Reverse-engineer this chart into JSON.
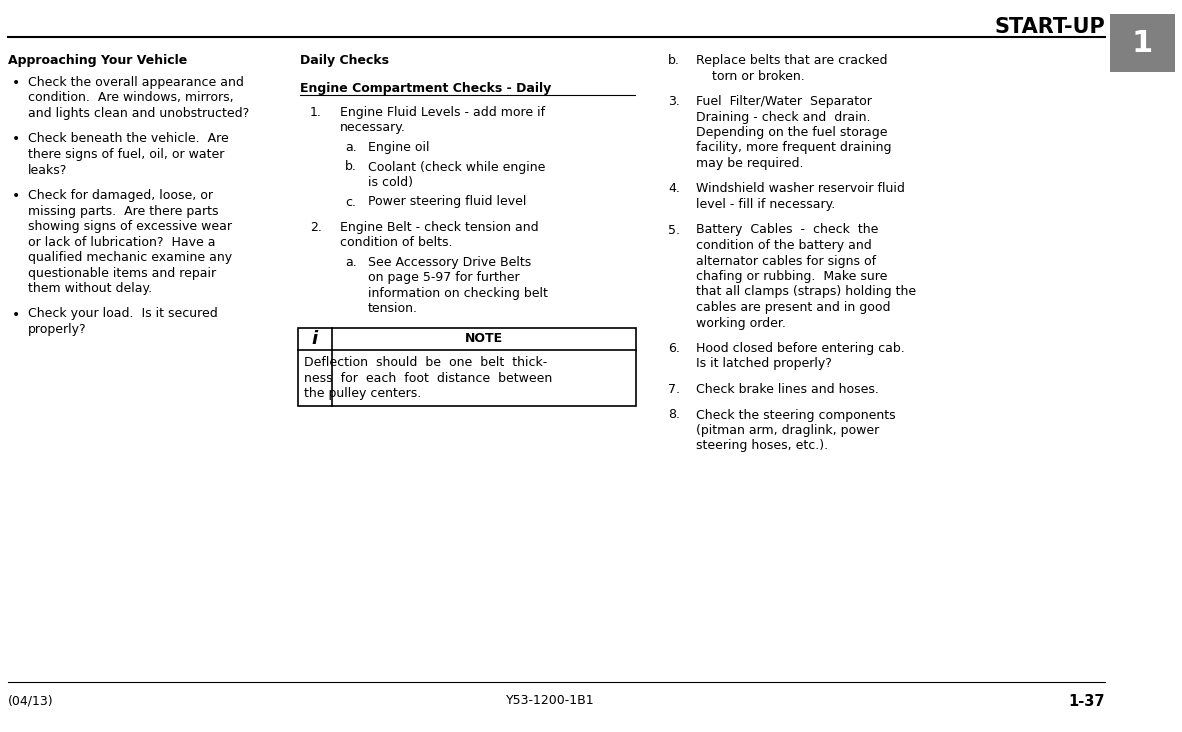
{
  "title": "START-UP",
  "chapter_num": "1",
  "footer_left": "(04/13)",
  "footer_center": "Y53-1200-1B1",
  "footer_right": "1-37",
  "bg_color": "#ffffff",
  "sidebar_color": "#808080",
  "col1_heading": "Approaching Your Vehicle",
  "col1_bullets": [
    "Check the overall appearance and\ncondition.  Are windows, mirrors,\nand lights clean and unobstructed?",
    "Check beneath the vehicle.  Are\nthere signs of fuel, oil, or water\nleaks?",
    "Check for damaged, loose, or\nmissing parts.  Are there parts\nshowing signs of excessive wear\nor lack of lubrication?  Have a\nqualified mechanic examine any\nquestionable items and repair\nthem without delay.",
    "Check your load.  Is it secured\nproperly?"
  ],
  "col2_heading": "Daily Checks",
  "col2_subheading": "Engine Compartment Checks - Daily",
  "item1_num": "1.",
  "item1_text": "Engine Fluid Levels - add more if\nnecessary.",
  "item1a_letter": "a.",
  "item1a_text": "Engine oil",
  "item1b_letter": "b.",
  "item1b_text": "Coolant (check while engine\nis cold)",
  "item1c_letter": "c.",
  "item1c_text": "Power steering fluid level",
  "item2_num": "2.",
  "item2_text": "Engine Belt - check tension and\ncondition of belts.",
  "item2a_letter": "a.",
  "item2a_text": "See Accessory Drive Belts\non page 5-97 for further\ninformation on checking belt\ntension.",
  "note_label": "NOTE",
  "note_i": "i",
  "note_line1": "Deflection  should  be  one  belt  thick-",
  "note_line2": "ness  for  each  foot  distance  between",
  "note_line3": "the pulley centers.",
  "col3_b_num": "b.",
  "col3_b_line1": "Replace belts that are cracked",
  "col3_b_line2": "    torn or broken.",
  "col3_items": [
    {
      "num": "3.",
      "lines": [
        "Fuel  Filter/Water  Separator",
        "Draining - check and  drain.",
        "Depending on the fuel storage",
        "facility, more frequent draining",
        "may be required."
      ]
    },
    {
      "num": "4.",
      "lines": [
        "Windshield washer reservoir fluid",
        "level - fill if necessary."
      ]
    },
    {
      "num": "5.",
      "lines": [
        "Battery  Cables  -  check  the",
        "condition of the battery and",
        "alternator cables for signs of",
        "chafing or rubbing.  Make sure",
        "that all clamps (straps) holding the",
        "cables are present and in good",
        "working order."
      ]
    },
    {
      "num": "6.",
      "lines": [
        "Hood closed before entering cab.",
        "Is it latched properly?"
      ]
    },
    {
      "num": "7.",
      "lines": [
        "Check brake lines and hoses."
      ]
    },
    {
      "num": "8.",
      "lines": [
        "Check the steering components",
        "(pitman arm, draglink, power",
        "steering hoses, etc.)."
      ]
    }
  ]
}
